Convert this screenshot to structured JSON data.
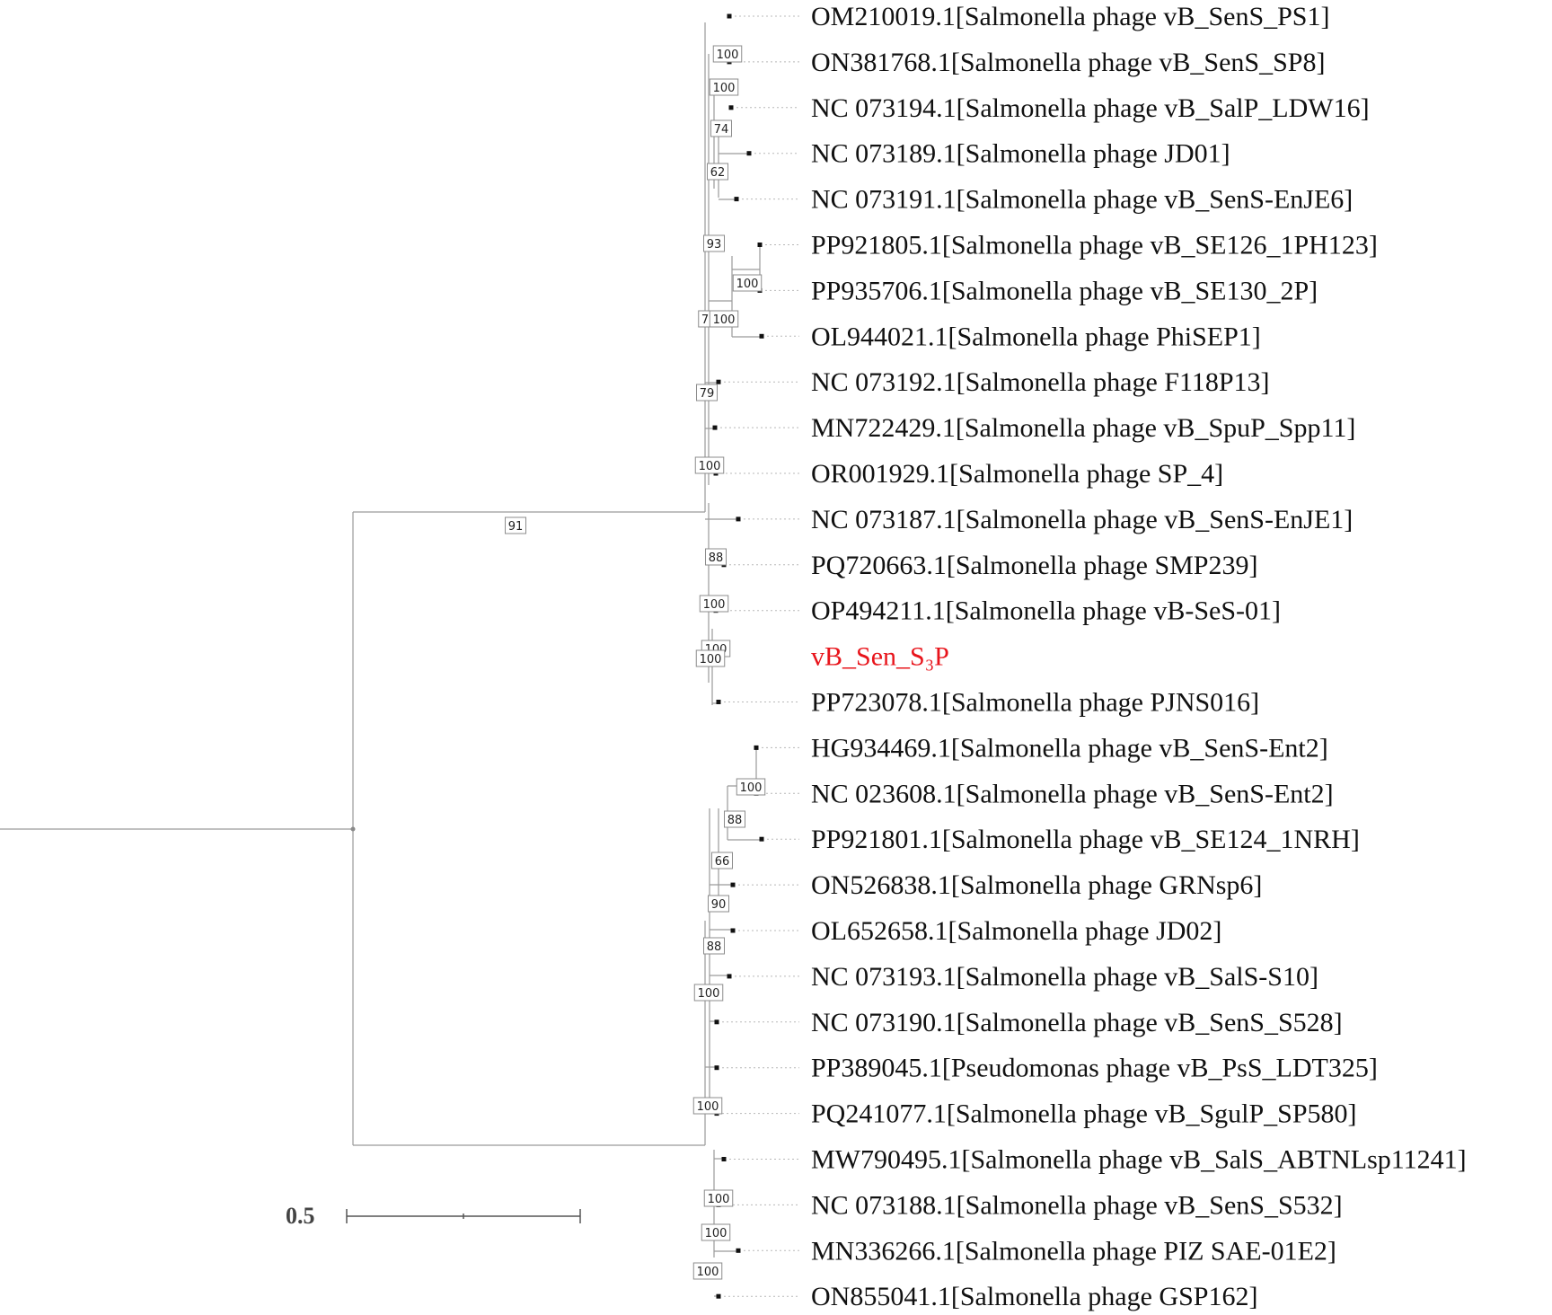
{
  "leaves": [
    {
      "label": "OM210019.1[Salmonella phage vB_SenS_PS1]",
      "highlight": false
    },
    {
      "label": "ON381768.1[Salmonella phage vB_SenS_SP8]",
      "highlight": false
    },
    {
      "label": "NC 073194.1[Salmonella phage vB_SalP_LDW16]",
      "highlight": false
    },
    {
      "label": "NC 073189.1[Salmonella phage JD01]",
      "highlight": false
    },
    {
      "label": "NC 073191.1[Salmonella phage vB_SenS-EnJE6]",
      "highlight": false
    },
    {
      "label": "PP921805.1[Salmonella phage vB_SE126_1PH123]",
      "highlight": false
    },
    {
      "label": "PP935706.1[Salmonella phage vB_SE130_2P]",
      "highlight": false
    },
    {
      "label": "OL944021.1[Salmonella phage PhiSEP1]",
      "highlight": false
    },
    {
      "label": "NC 073192.1[Salmonella phage F118P13]",
      "highlight": false
    },
    {
      "label": "MN722429.1[Salmonella phage vB_SpuP_Spp11]",
      "highlight": false
    },
    {
      "label": "OR001929.1[Salmonella phage SP_4]",
      "highlight": false
    },
    {
      "label": "NC 073187.1[Salmonella phage vB_SenS-EnJE1]",
      "highlight": false
    },
    {
      "label": "PQ720663.1[Salmonella phage SMP239]",
      "highlight": false
    },
    {
      "label": "OP494211.1[Salmonella phage vB-SeS-01]",
      "highlight": false
    },
    {
      "label": "vB_Sen_S₃P",
      "highlight": true
    },
    {
      "label": "PP723078.1[Salmonella phage PJNS016]",
      "highlight": false
    },
    {
      "label": "HG934469.1[Salmonella phage vB_SenS-Ent2]",
      "highlight": false
    },
    {
      "label": "NC 023608.1[Salmonella phage vB_SenS-Ent2]",
      "highlight": false
    },
    {
      "label": "PP921801.1[Salmonella phage vB_SE124_1NRH]",
      "highlight": false
    },
    {
      "label": "ON526838.1[Salmonella phage GRNsp6]",
      "highlight": false
    },
    {
      "label": "OL652658.1[Salmonella phage JD02]",
      "highlight": false
    },
    {
      "label": "NC 073193.1[Salmonella phage vB_SalS-S10]",
      "highlight": false
    },
    {
      "label": "NC 073190.1[Salmonella phage vB_SenS_S528]",
      "highlight": false
    },
    {
      "label": "PP389045.1[Pseudomonas phage vB_PsS_LDT325]",
      "highlight": false
    },
    {
      "label": "PQ241077.1[Salmonella phage vB_SgulP_SP580]",
      "highlight": false
    },
    {
      "label": "MW790495.1[Salmonella phage vB_SalS_ABTNLsp11241]",
      "highlight": false
    },
    {
      "label": "NC 073188.1[Salmonella phage vB_SenS_S532]",
      "highlight": false
    },
    {
      "label": "MN336266.1[Salmonella phage PIZ SAE-01E2]",
      "highlight": false
    },
    {
      "label": "ON855041.1[Salmonella phage GSP162]",
      "highlight": false
    }
  ],
  "bootstrap_values": [
    "100",
    "100",
    "74",
    "62",
    "93",
    "100",
    "7",
    "100",
    "79",
    "100",
    "91",
    "88",
    "100",
    "100",
    "100",
    "100",
    "88",
    "66",
    "90",
    "88",
    "100",
    "100",
    "100",
    "100",
    "100"
  ],
  "scale_bar": {
    "label": "0.5"
  },
  "colors": {
    "branch": "#9a9a9a",
    "highlight": "#e8141b",
    "text": "#111111"
  }
}
